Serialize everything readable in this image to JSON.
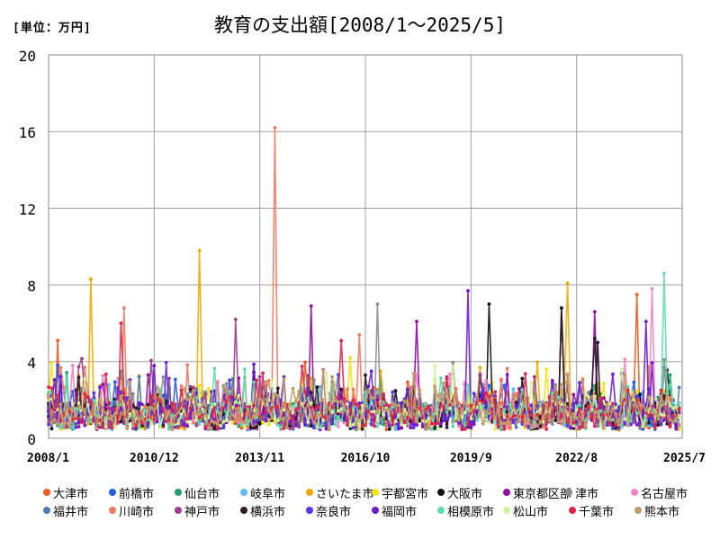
{
  "unit_label": "[単位：万円]",
  "chart_data": {
    "type": "line",
    "title": "教育の支出額[2008/1～2025/5]",
    "xlabel": "",
    "ylabel": "",
    "ylim": [
      0,
      20
    ],
    "y_ticks": [
      "0",
      "4",
      "8",
      "12",
      "16",
      "20"
    ],
    "y_tick_values": [
      0,
      4,
      8,
      12,
      16,
      20
    ],
    "x_ticks": [
      "2008/1",
      "2010/12",
      "2013/11",
      "2016/10",
      "2019/9",
      "2022/8",
      "2025/7"
    ],
    "x_tick_values": [
      0,
      35,
      70,
      105,
      140,
      175,
      210
    ],
    "x_range": [
      0,
      210
    ],
    "grid": true,
    "legend_position": "bottom",
    "series": [
      {
        "name": "大津市",
        "color": "#f05a24",
        "peaks": [
          [
            3,
            5.1
          ],
          [
            143,
            3.2
          ],
          [
            195,
            7.5
          ]
        ]
      },
      {
        "name": "前橋市",
        "color": "#1f5ee8",
        "peaks": [
          [
            60,
            2.0
          ],
          [
            150,
            2.3
          ]
        ]
      },
      {
        "name": "仙台市",
        "color": "#22a06b",
        "peaks": [
          [
            40,
            2.6
          ],
          [
            110,
            3.1
          ]
        ]
      },
      {
        "name": "岐阜市",
        "color": "#5bbcf2",
        "peaks": [
          [
            20,
            2.8
          ],
          [
            90,
            2.7
          ]
        ]
      },
      {
        "name": "さいたま市",
        "color": "#f0a800",
        "peaks": [
          [
            14,
            8.3
          ],
          [
            50,
            9.8
          ],
          [
            172,
            8.1
          ]
        ]
      },
      {
        "name": "宇都宮市",
        "color": "#f5e20a",
        "peaks": [
          [
            100,
            4.2
          ],
          [
            165,
            3.6
          ]
        ]
      },
      {
        "name": "大阪市",
        "color": "#111111",
        "peaks": [
          [
            146,
            7.0
          ],
          [
            170,
            6.8
          ],
          [
            182,
            5.0
          ]
        ]
      },
      {
        "name": "東京都区部",
        "color": "#8f0aa0",
        "peaks": [
          [
            87,
            6.9
          ],
          [
            122,
            6.1
          ],
          [
            181,
            6.6
          ]
        ]
      },
      {
        "name": "津市",
        "color": "#8c8c8c",
        "peaks": [
          [
            109,
            7.0
          ],
          [
            150,
            3.0
          ]
        ]
      },
      {
        "name": "名古屋市",
        "color": "#f782c8",
        "peaks": [
          [
            8,
            3.8
          ],
          [
            200,
            7.8
          ]
        ]
      },
      {
        "name": "福井市",
        "color": "#4d7ea8",
        "peaks": [
          [
            30,
            3.2
          ],
          [
            120,
            2.4
          ]
        ]
      },
      {
        "name": "川崎市",
        "color": "#ee7a62",
        "peaks": [
          [
            25,
            6.8
          ],
          [
            75,
            16.2
          ],
          [
            103,
            5.4
          ]
        ]
      },
      {
        "name": "神戸市",
        "color": "#9b3e8e",
        "peaks": [
          [
            62,
            6.2
          ],
          [
            132,
            3.2
          ]
        ]
      },
      {
        "name": "横浜市",
        "color": "#2a1a24",
        "peaks": [
          [
            170,
            6.8
          ],
          [
            181,
            5.2
          ]
        ]
      },
      {
        "name": "奈良市",
        "color": "#5a32e6",
        "peaks": [
          [
            78,
            3.2
          ],
          [
            190,
            3.4
          ]
        ]
      },
      {
        "name": "福岡市",
        "color": "#6a1ad1",
        "peaks": [
          [
            139,
            7.7
          ],
          [
            198,
            6.1
          ]
        ]
      },
      {
        "name": "相模原市",
        "color": "#5ed9b0",
        "peaks": [
          [
            65,
            3.6
          ],
          [
            204,
            8.6
          ]
        ]
      },
      {
        "name": "松山市",
        "color": "#cff59a",
        "peaks": [
          [
            12,
            3.1
          ],
          [
            160,
            2.9
          ]
        ]
      },
      {
        "name": "千葉市",
        "color": "#e0244e",
        "peaks": [
          [
            24,
            6.0
          ],
          [
            97,
            5.1
          ]
        ]
      },
      {
        "name": "熊本市",
        "color": "#bf9b6a",
        "peaks": [
          [
            45,
            2.6
          ],
          [
            128,
            2.7
          ]
        ]
      }
    ]
  }
}
